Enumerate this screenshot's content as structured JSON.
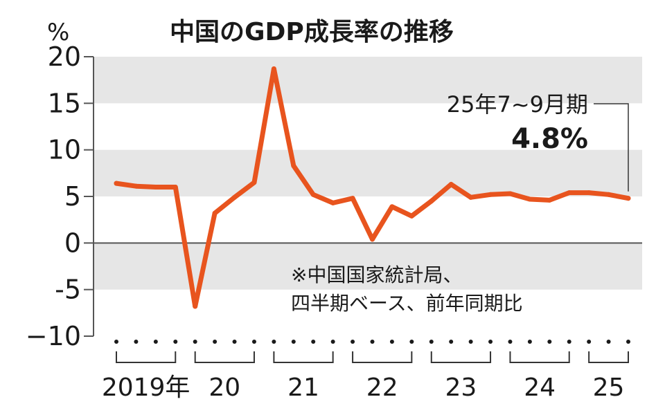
{
  "chart_data": {
    "type": "line",
    "title": "中国のGDP成長率の推移",
    "ylabel": "%",
    "ylim": [
      -10,
      20
    ],
    "yticks": [
      "20",
      "15",
      "10",
      "5",
      "0",
      "-5",
      "−10"
    ],
    "year_labels": [
      "2019年",
      "20",
      "21",
      "22",
      "23",
      "24",
      "25"
    ],
    "x": [
      "2019Q1",
      "2019Q2",
      "2019Q3",
      "2019Q4",
      "2020Q1",
      "2020Q2",
      "2020Q3",
      "2020Q4",
      "2021Q1",
      "2021Q2",
      "2021Q3",
      "2021Q4",
      "2022Q1",
      "2022Q2",
      "2022Q3",
      "2022Q4",
      "2023Q1",
      "2023Q2",
      "2023Q3",
      "2023Q4",
      "2024Q1",
      "2024Q2",
      "2024Q3",
      "2024Q4",
      "2025Q1",
      "2025Q2",
      "2025Q3"
    ],
    "series": [
      {
        "values": [
          6.4,
          6.1,
          6.0,
          6.0,
          -6.8,
          3.2,
          4.9,
          6.5,
          18.7,
          8.3,
          5.2,
          4.3,
          4.8,
          0.4,
          3.9,
          2.9,
          4.5,
          6.3,
          4.9,
          5.2,
          5.3,
          4.7,
          4.6,
          5.4,
          5.4,
          5.2,
          4.8
        ],
        "color": "#e8541e"
      }
    ],
    "grid": "alternating horizontal bands",
    "annotation": {
      "label": "25年7~9月期",
      "value": "4.8%"
    },
    "source_note": [
      "※中国国家統計局、",
      "四半期ベース、前年同期比"
    ]
  },
  "colors": {
    "line": "#e8541e",
    "band": "#e6e6e6",
    "text": "#1a1a1a"
  }
}
